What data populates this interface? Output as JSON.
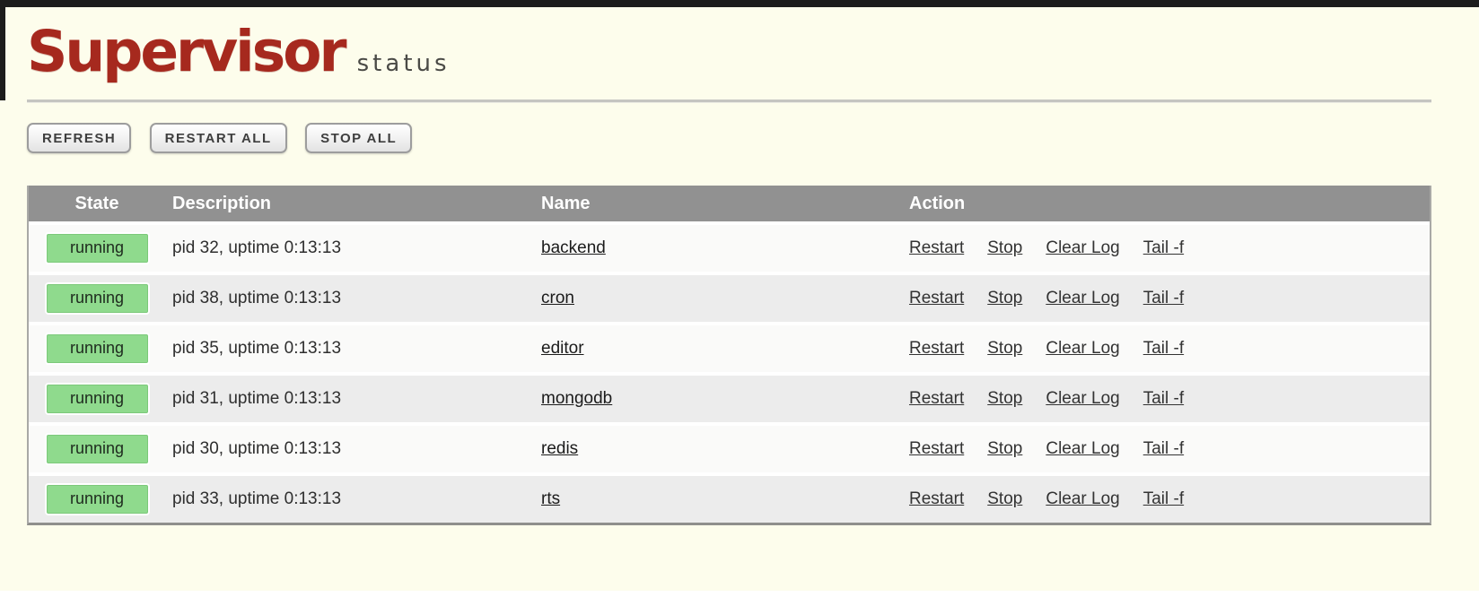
{
  "header": {
    "logo_text": "Supervisor",
    "page_title": "status"
  },
  "toolbar": {
    "buttons": [
      {
        "label": "REFRESH"
      },
      {
        "label": "RESTART ALL"
      },
      {
        "label": "STOP ALL"
      }
    ]
  },
  "table": {
    "columns": [
      "State",
      "Description",
      "Name",
      "Action"
    ],
    "action_labels": [
      "Restart",
      "Stop",
      "Clear Log",
      "Tail -f"
    ],
    "processes": [
      {
        "state": "running",
        "description": "pid 32, uptime 0:13:13",
        "name": "backend"
      },
      {
        "state": "running",
        "description": "pid 38, uptime 0:13:13",
        "name": "cron"
      },
      {
        "state": "running",
        "description": "pid 35, uptime 0:13:13",
        "name": "editor"
      },
      {
        "state": "running",
        "description": "pid 31, uptime 0:13:13",
        "name": "mongodb"
      },
      {
        "state": "running",
        "description": "pid 30, uptime 0:13:13",
        "name": "redis"
      },
      {
        "state": "running",
        "description": "pid 33, uptime 0:13:13",
        "name": "rts"
      }
    ]
  },
  "colors": {
    "brand_red": "#A6291E",
    "status_running_green": "#8FDA8D",
    "table_header_gray": "#919191",
    "page_background": "#FDFDEC"
  }
}
